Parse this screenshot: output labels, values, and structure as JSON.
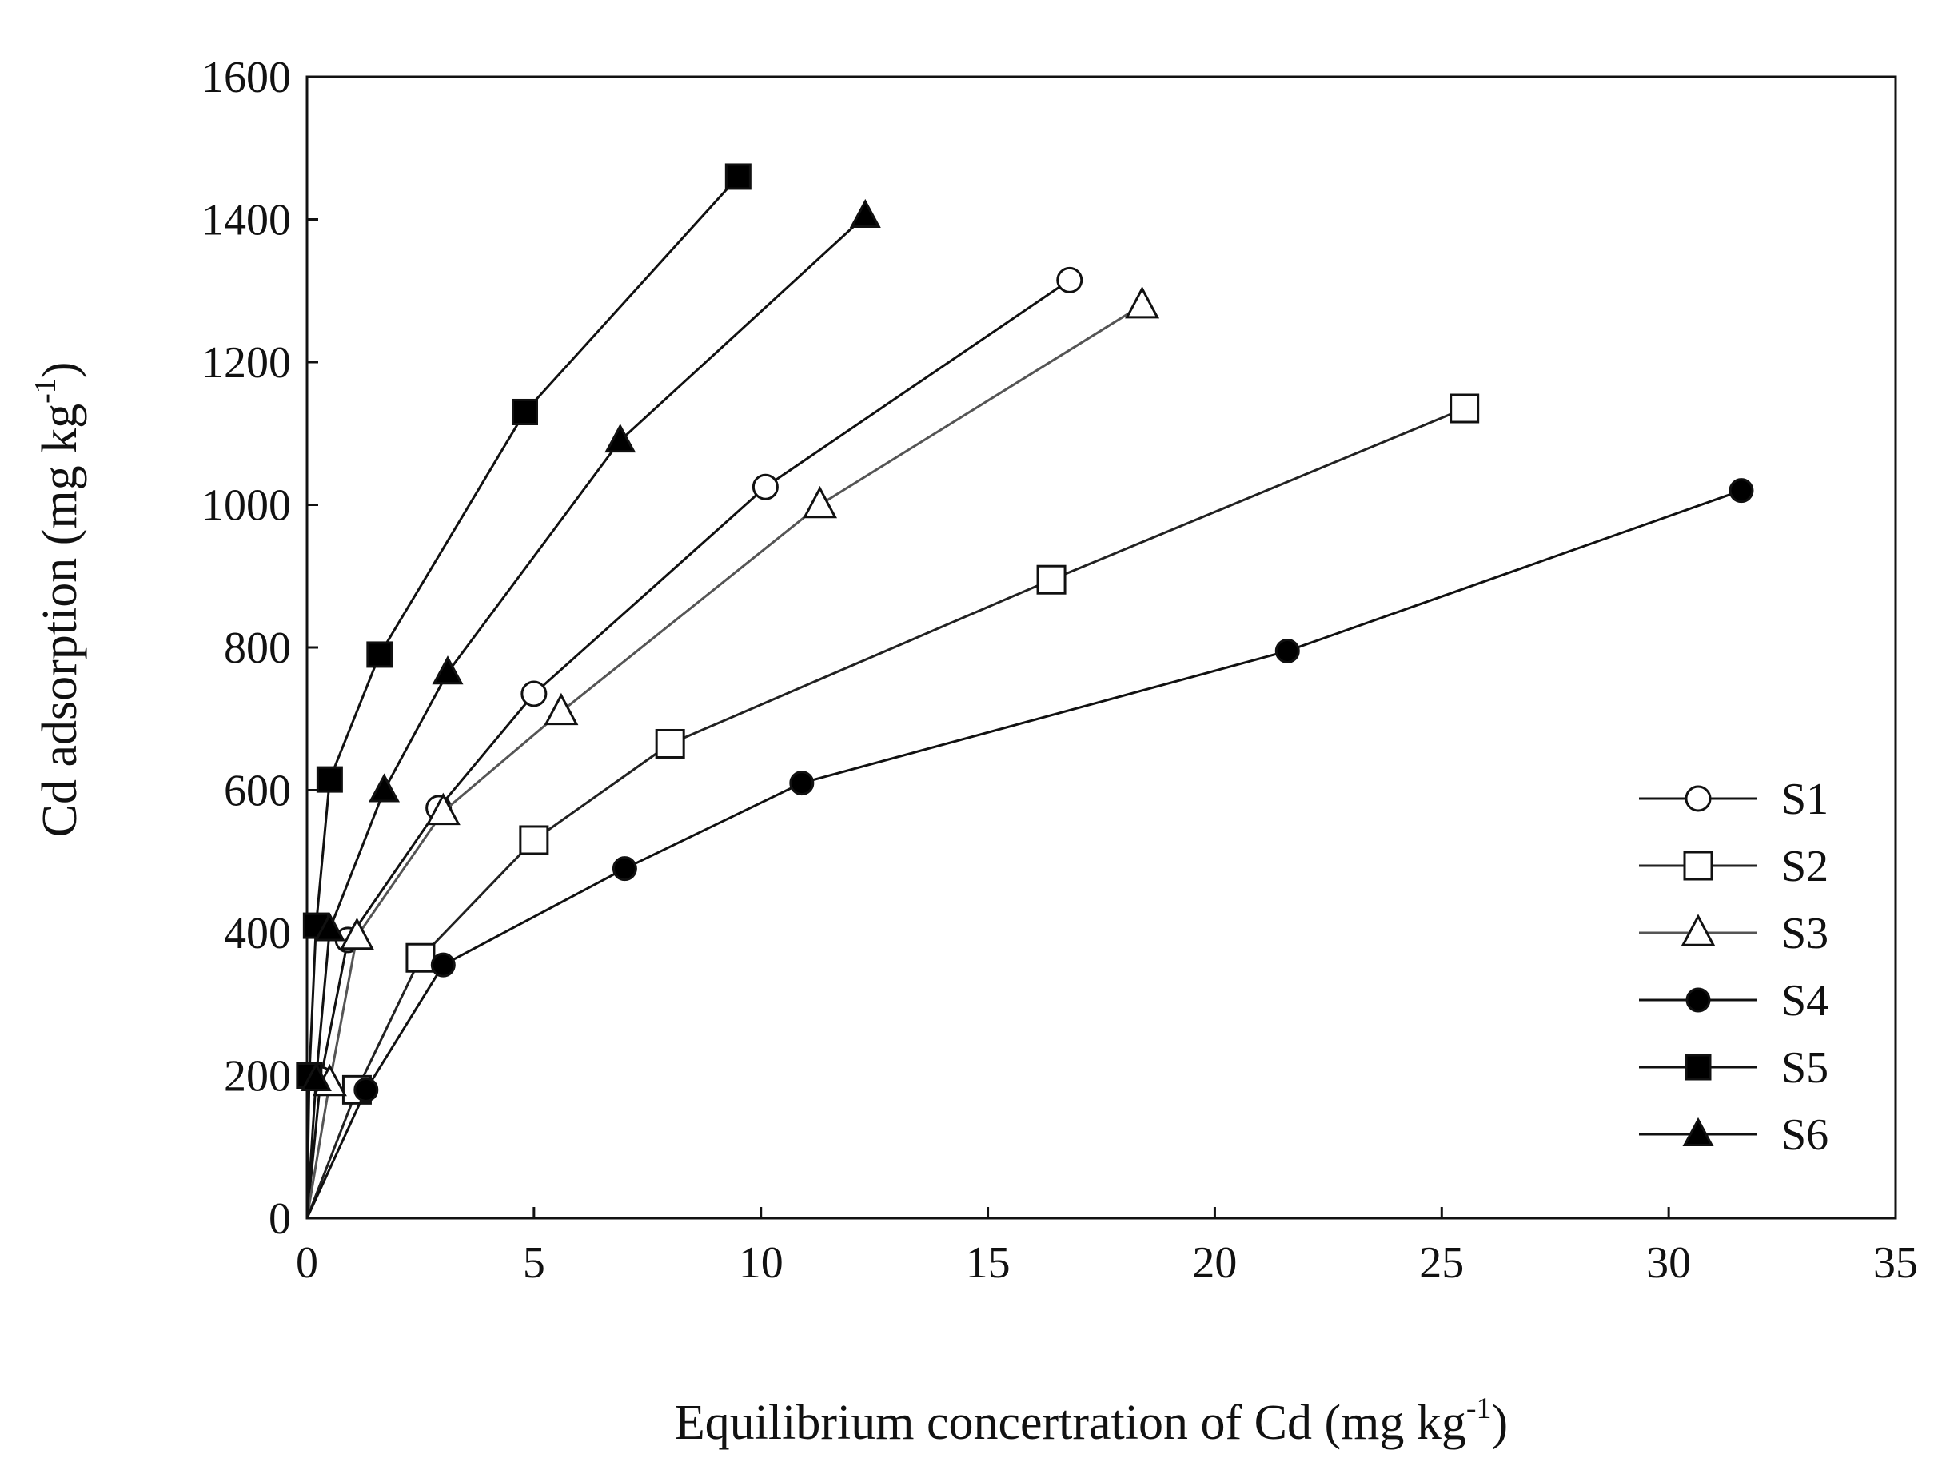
{
  "chart_data": {
    "type": "line",
    "title": "",
    "xlabel": {
      "main": "Equilibrium concertration of Cd (mg kg",
      "sup": "-1",
      "tail": ")"
    },
    "ylabel": {
      "main": "Cd adsorption (mg kg",
      "sup": "-1",
      "tail": ")"
    },
    "xlim": [
      0,
      35
    ],
    "ylim": [
      0,
      1600
    ],
    "xticks": [
      0,
      5,
      10,
      15,
      20,
      25,
      30,
      35
    ],
    "yticks": [
      0,
      200,
      400,
      600,
      800,
      1000,
      1200,
      1400,
      1600
    ],
    "grid": false,
    "legend_position": "bottom-right",
    "series": [
      {
        "name": "S1",
        "marker": "circle-open",
        "x": [
          0,
          0.3,
          0.9,
          2.9,
          5.0,
          10.1,
          16.8
        ],
        "y": [
          0,
          195,
          390,
          575,
          735,
          1025,
          1315
        ]
      },
      {
        "name": "S2",
        "marker": "square-open",
        "x": [
          0,
          1.1,
          2.5,
          5.0,
          8.0,
          16.4,
          25.5
        ],
        "y": [
          0,
          180,
          365,
          530,
          665,
          895,
          1135
        ]
      },
      {
        "name": "S3",
        "marker": "triangle-open",
        "x": [
          0,
          0.5,
          1.1,
          3.0,
          5.6,
          11.3,
          18.4
        ],
        "y": [
          0,
          190,
          395,
          570,
          710,
          1000,
          1280
        ]
      },
      {
        "name": "S4",
        "marker": "circle-filled",
        "x": [
          0,
          1.3,
          3.0,
          7.0,
          10.9,
          21.6,
          31.6
        ],
        "y": [
          0,
          180,
          355,
          490,
          610,
          795,
          1020
        ]
      },
      {
        "name": "S5",
        "marker": "square-filled",
        "x": [
          0,
          0.05,
          0.2,
          0.5,
          1.6,
          4.8,
          9.5
        ],
        "y": [
          0,
          200,
          410,
          615,
          790,
          1130,
          1460
        ]
      },
      {
        "name": "S6",
        "marker": "triangle-filled",
        "x": [
          0,
          0.2,
          0.5,
          1.7,
          3.1,
          6.9,
          12.3
        ],
        "y": [
          0,
          195,
          405,
          600,
          765,
          1090,
          1405
        ]
      }
    ]
  }
}
